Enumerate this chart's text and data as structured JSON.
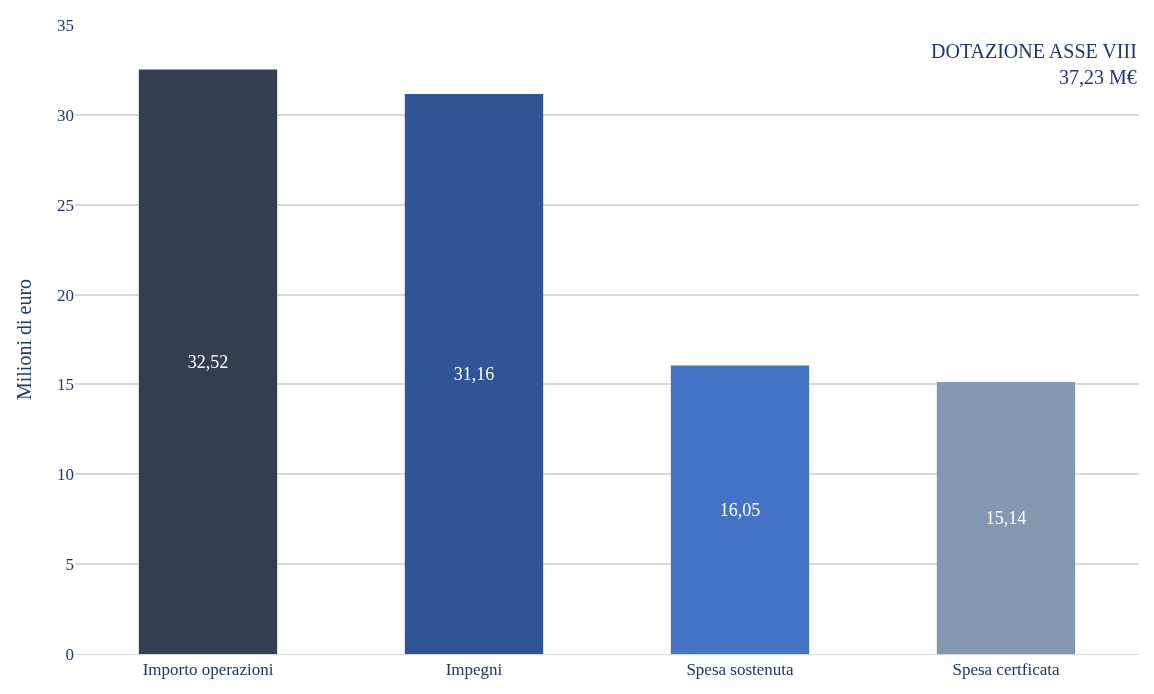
{
  "chart_data": {
    "type": "bar",
    "categories": [
      "Importo operazioni",
      "Impegni",
      "Spesa sostenuta",
      "Spesa certficata"
    ],
    "values": [
      32.52,
      31.16,
      16.05,
      15.14
    ],
    "colors": [
      "#333f50",
      "#2f5597",
      "#4472c4",
      "#8497b0"
    ],
    "value_labels": [
      "32,52",
      "31,16",
      "16,05",
      "15,14"
    ],
    "ylabel": "Milioni di euro",
    "ylim": [
      0,
      35
    ],
    "yticks": [
      0,
      5,
      10,
      15,
      20,
      25,
      30,
      35
    ],
    "grid": "y",
    "annotations": [
      "DOTAZIONE ASSE VIII\n37,23 M€"
    ]
  }
}
